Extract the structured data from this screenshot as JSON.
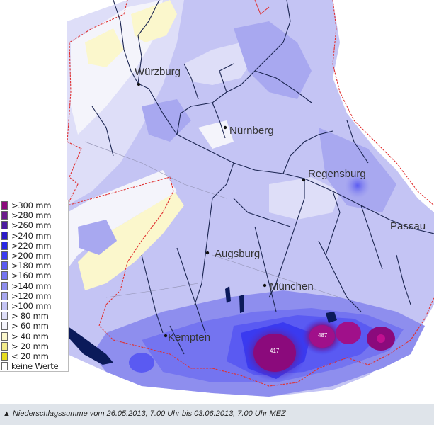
{
  "map": {
    "cities": [
      {
        "name": "Würzburg"
      },
      {
        "name": "Nürnberg"
      },
      {
        "name": "Regensburg"
      },
      {
        "name": "Passau"
      },
      {
        "name": "Augsburg"
      },
      {
        "name": "München"
      },
      {
        "name": "Kempten"
      }
    ],
    "peaks": [
      "417",
      "487"
    ]
  },
  "legend": {
    "title": "",
    "items": [
      {
        "label": ">300  mm",
        "color": "#8b0a7c"
      },
      {
        "label": ">280  mm",
        "color": "#6b1a8c"
      },
      {
        "label": ">260  mm",
        "color": "#4b1aa0"
      },
      {
        "label": ">240  mm",
        "color": "#2a1ac8"
      },
      {
        "label": ">220  mm",
        "color": "#2828e6"
      },
      {
        "label": ">200  mm",
        "color": "#3a3af0"
      },
      {
        "label": ">180  mm",
        "color": "#5a5af2"
      },
      {
        "label": ">160  mm",
        "color": "#7474f0"
      },
      {
        "label": ">140  mm",
        "color": "#8e8eee"
      },
      {
        "label": ">120  mm",
        "color": "#a8a8f0"
      },
      {
        "label": ">100  mm",
        "color": "#c4c4f4"
      },
      {
        "label": "> 80  mm",
        "color": "#dedef8"
      },
      {
        "label": "> 60  mm",
        "color": "#f4f4fb"
      },
      {
        "label": "> 40  mm",
        "color": "#fbf7cc"
      },
      {
        "label": "> 20  mm",
        "color": "#f3ec8a"
      },
      {
        "label": "< 20  mm",
        "color": "#e6dc1e"
      },
      {
        "label": "keine Werte",
        "color": "#ffffff"
      }
    ]
  },
  "caption": "▲ Niederschlagssumme vom 26.05.2013, 7.00 Uhr bis 03.06.2013, 7.00 Uhr MEZ"
}
